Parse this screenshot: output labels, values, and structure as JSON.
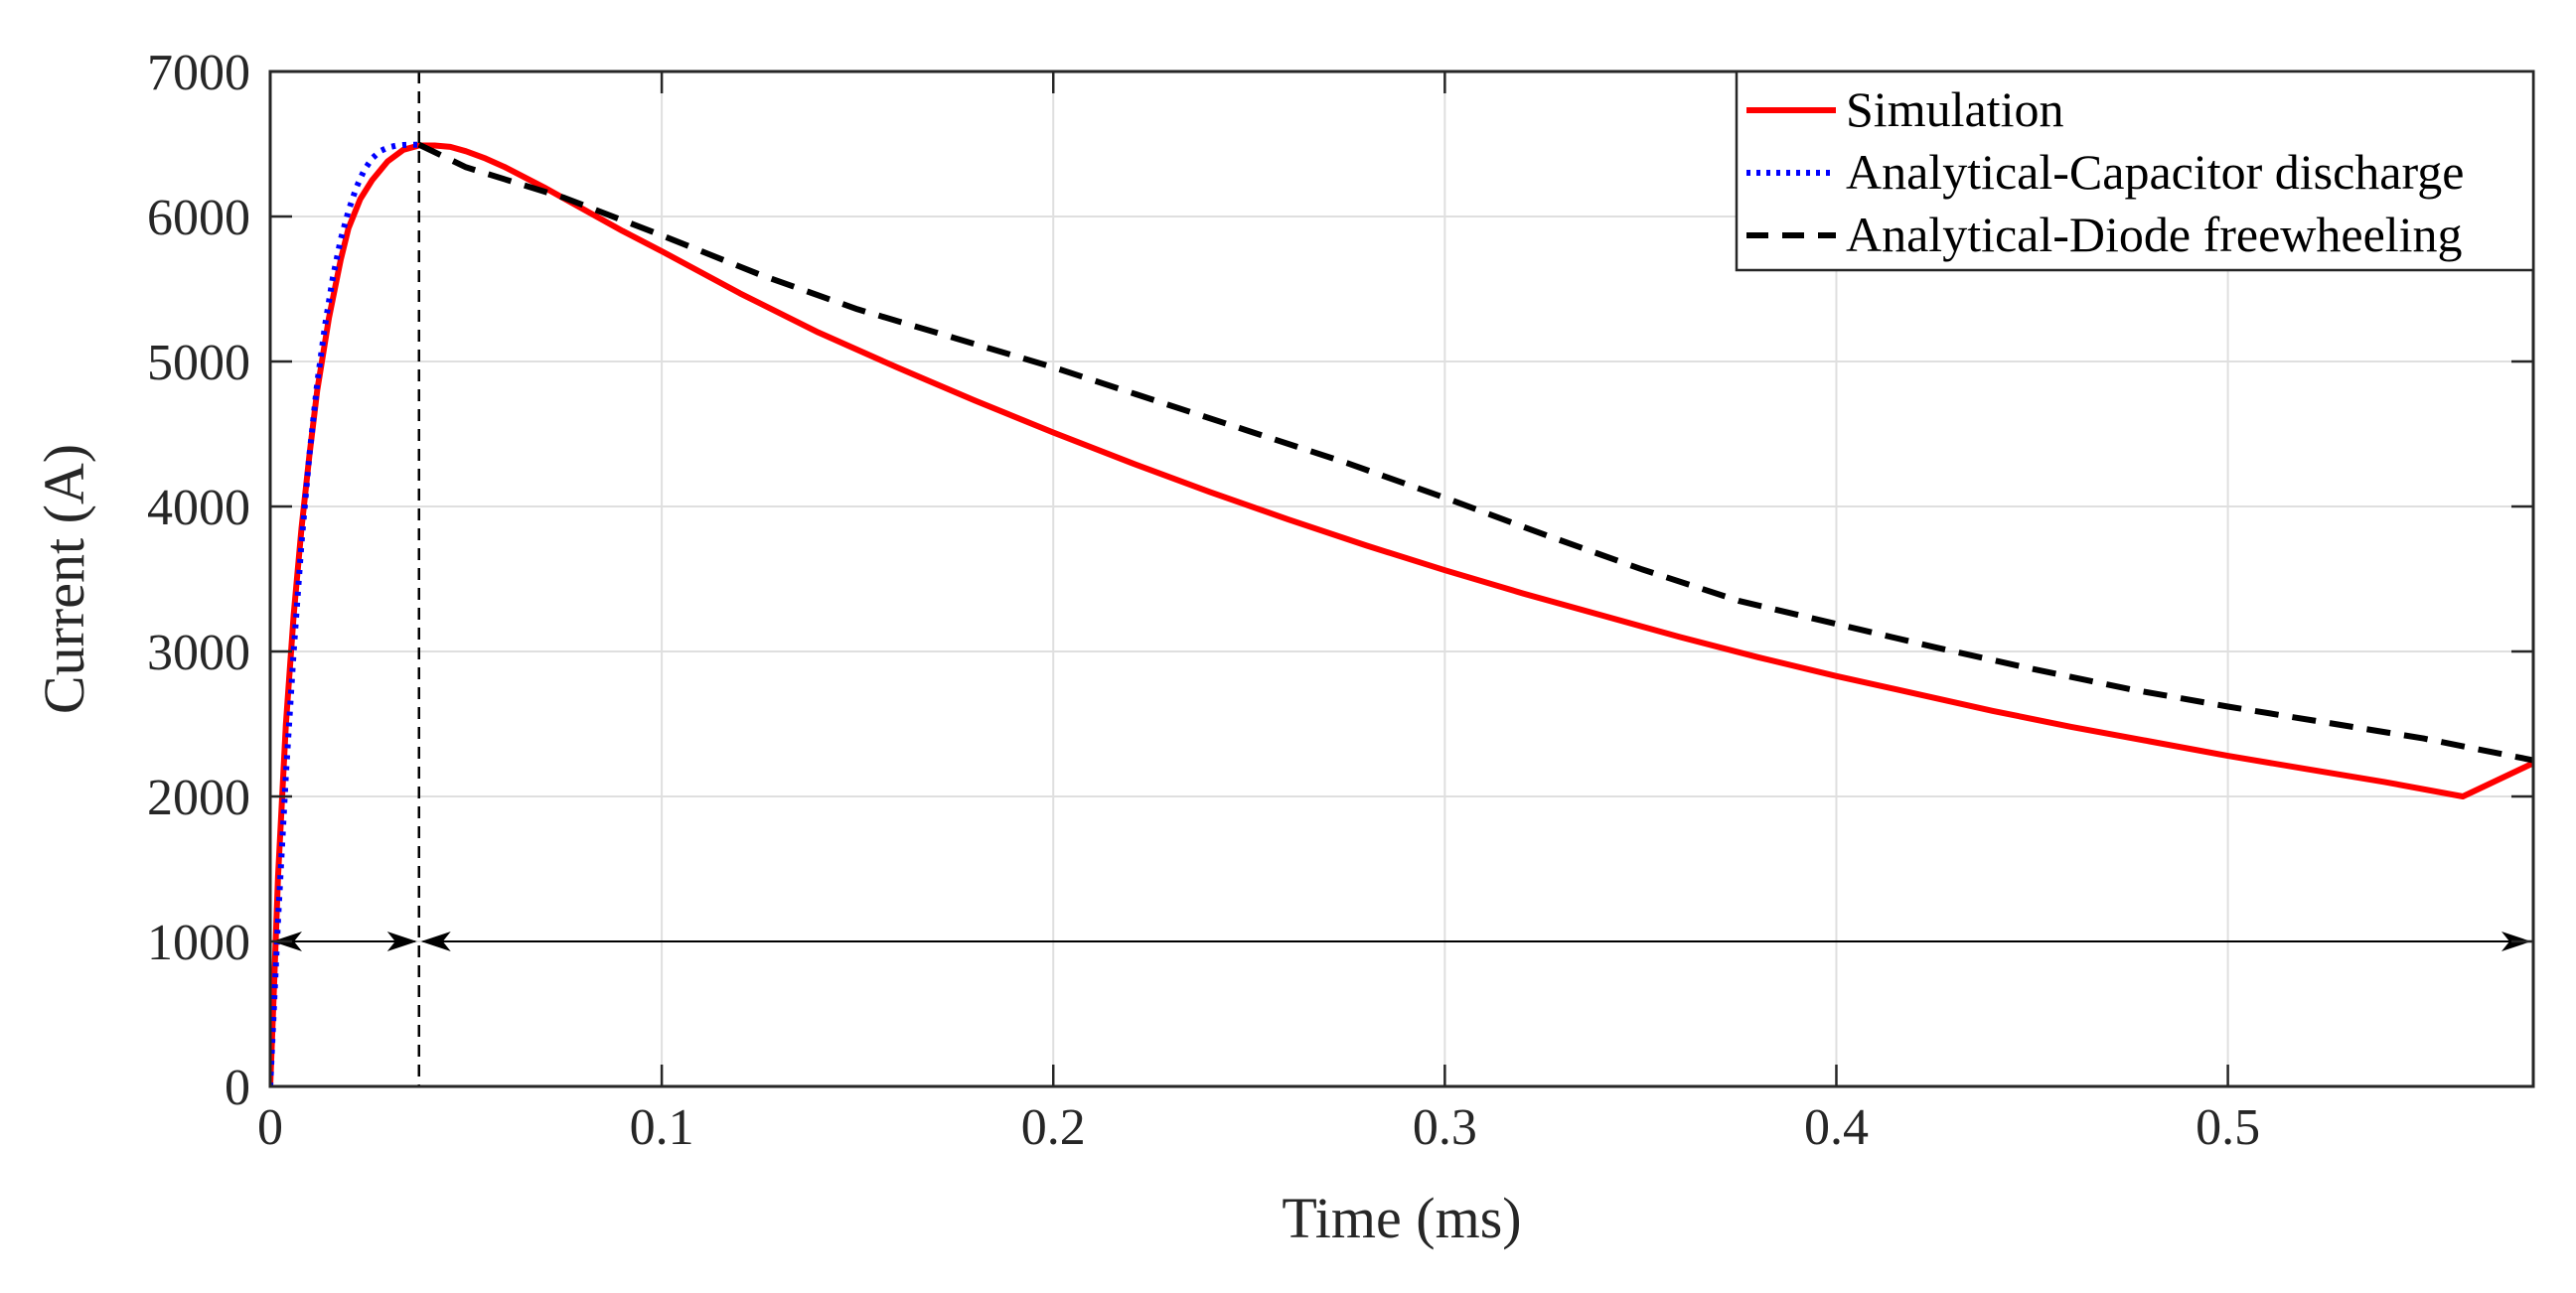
{
  "chart_data": {
    "type": "line",
    "title": "",
    "xlabel": "Time (ms)",
    "ylabel": "Current (A)",
    "xlim": [
      0,
      0.578
    ],
    "ylim": [
      0,
      7000
    ],
    "grid": true,
    "legend_position": "top-right",
    "xticks": [
      0,
      0.1,
      0.2,
      0.3,
      0.4,
      0.5
    ],
    "xtick_labels": [
      "0",
      "0.1",
      "0.2",
      "0.3",
      "0.4",
      "0.5"
    ],
    "yticks": [
      0,
      1000,
      2000,
      3000,
      4000,
      5000,
      6000,
      7000
    ],
    "ytick_labels": [
      "0",
      "1000",
      "2000",
      "3000",
      "4000",
      "5000",
      "6000",
      "7000"
    ],
    "series": [
      {
        "name": "Simulation",
        "color": "#ff0000",
        "style": "solid",
        "x": [
          0,
          0.001,
          0.002,
          0.004,
          0.006,
          0.008,
          0.01,
          0.012,
          0.015,
          0.018,
          0.02,
          0.023,
          0.026,
          0.03,
          0.034,
          0.038,
          0.042,
          0.046,
          0.05,
          0.055,
          0.06,
          0.07,
          0.08,
          0.09,
          0.1,
          0.12,
          0.14,
          0.16,
          0.18,
          0.2,
          0.22,
          0.24,
          0.26,
          0.28,
          0.3,
          0.32,
          0.34,
          0.36,
          0.38,
          0.4,
          0.42,
          0.44,
          0.46,
          0.48,
          0.5,
          0.52,
          0.54,
          0.56,
          0.578
        ],
        "y": [
          0,
          700,
          1450,
          2500,
          3250,
          3850,
          4350,
          4800,
          5300,
          5700,
          5920,
          6120,
          6250,
          6380,
          6460,
          6490,
          6490,
          6480,
          6450,
          6400,
          6340,
          6200,
          6050,
          5900,
          5760,
          5470,
          5200,
          4960,
          4730,
          4510,
          4300,
          4100,
          3910,
          3730,
          3560,
          3400,
          3250,
          3100,
          2960,
          2830,
          2710,
          2590,
          2480,
          2380,
          2280,
          2190,
          2100,
          2000,
          2230
        ]
      },
      {
        "name": "Analytical-Capacitor discharge",
        "color": "#0000ff",
        "style": "dotted",
        "x": [
          0,
          0.002,
          0.004,
          0.006,
          0.008,
          0.01,
          0.012,
          0.014,
          0.016,
          0.018,
          0.02,
          0.022,
          0.024,
          0.026,
          0.028,
          0.03,
          0.032,
          0.034,
          0.036,
          0.038
        ],
        "y": [
          0,
          1150,
          2150,
          3000,
          3750,
          4350,
          4850,
          5250,
          5580,
          5840,
          6040,
          6200,
          6320,
          6400,
          6450,
          6475,
          6488,
          6493,
          6495,
          6495
        ]
      },
      {
        "name": "Analytical-Diode freewheeling",
        "color": "#000000",
        "style": "dashed",
        "x": [
          0.038,
          0.05,
          0.075,
          0.1,
          0.125,
          0.15,
          0.175,
          0.2,
          0.225,
          0.25,
          0.275,
          0.3,
          0.325,
          0.35,
          0.375,
          0.4,
          0.425,
          0.45,
          0.475,
          0.5,
          0.525,
          0.55,
          0.578
        ],
        "y": [
          6495,
          6340,
          6130,
          5870,
          5600,
          5360,
          5160,
          4960,
          4740,
          4520,
          4300,
          4060,
          3810,
          3570,
          3350,
          3190,
          3030,
          2880,
          2740,
          2620,
          2510,
          2400,
          2250
        ]
      }
    ],
    "annotations": {
      "vertical_dashed_line_x": 0.038,
      "interval_arrows": [
        {
          "from": 0,
          "to": 0.038,
          "y": 1000
        },
        {
          "from": 0.038,
          "to": 0.578,
          "y": 1000
        }
      ]
    }
  }
}
